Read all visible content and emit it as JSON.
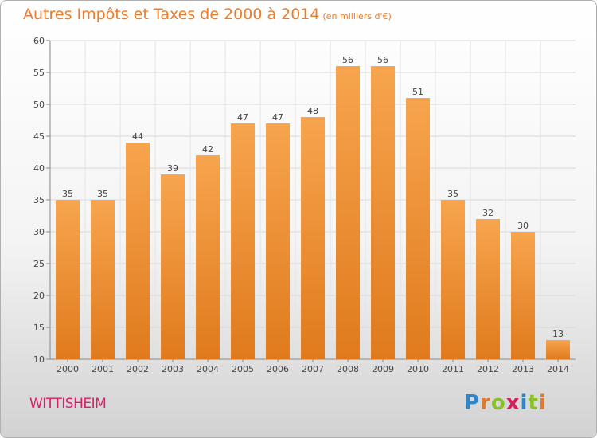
{
  "title": "Autres Impôts et Taxes de 2000 à 2014",
  "unit": "(en milliers d'€)",
  "commune": "WITTISHEIM",
  "logo": {
    "letters": [
      {
        "ch": "P",
        "color": "#2f86c8"
      },
      {
        "ch": "r",
        "color": "#e6782a"
      },
      {
        "ch": "o",
        "color": "#8bbf2a"
      },
      {
        "ch": "x",
        "color": "#d8205f"
      },
      {
        "ch": "i",
        "color": "#2f86c8"
      },
      {
        "ch": "t",
        "color": "#8bbf2a"
      },
      {
        "ch": "i",
        "color": "#e6782a"
      }
    ]
  },
  "chart_data": {
    "type": "bar",
    "title": "Autres Impôts et Taxes de 2000 à 2014",
    "categories": [
      "2000",
      "2001",
      "2002",
      "2003",
      "2004",
      "2005",
      "2006",
      "2007",
      "2008",
      "2009",
      "2010",
      "2011",
      "2012",
      "2013",
      "2014"
    ],
    "values": [
      35,
      35,
      44,
      39,
      42,
      47,
      47,
      48,
      56,
      56,
      51,
      35,
      32,
      30,
      13
    ],
    "ylim": [
      10,
      60
    ],
    "yticks": [
      10,
      15,
      20,
      25,
      30,
      35,
      40,
      45,
      50,
      55,
      60
    ],
    "grid": true,
    "colors": {
      "bar_top": "#f7a54e",
      "bar_bottom": "#e07a1d",
      "grid": "#d8d8d8"
    }
  }
}
